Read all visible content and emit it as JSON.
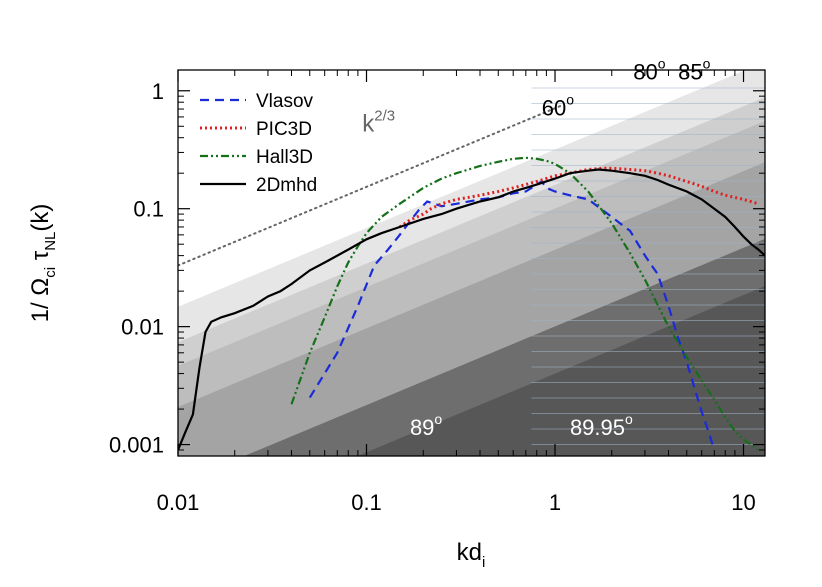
{
  "chart_data": {
    "type": "line",
    "xlabel": "kd",
    "xlabel_sub": "i",
    "ylabel_parts": {
      "prefix": "1/ Ω",
      "sub1": "ci",
      "tau": " τ",
      "sub2": "NL",
      "suffix": "(k)"
    },
    "xscale": "log",
    "yscale": "log",
    "xlim": [
      0.01,
      13
    ],
    "ylim": [
      0.0008,
      1.5
    ],
    "xticks": [
      {
        "value": 0.01,
        "label": "0.01"
      },
      {
        "value": 0.1,
        "label": "0.1"
      },
      {
        "value": 1,
        "label": "1"
      },
      {
        "value": 10,
        "label": "10"
      }
    ],
    "yticks": [
      {
        "value": 0.001,
        "label": "0.001"
      },
      {
        "value": 0.01,
        "label": "0.01"
      },
      {
        "value": 0.1,
        "label": "0.1"
      },
      {
        "value": 1,
        "label": "1"
      }
    ],
    "legend_position": "top-left",
    "series": [
      {
        "name": "Vlasov",
        "color": "#1a2bd9",
        "dash": "dashed",
        "x": [
          0.05,
          0.07,
          0.09,
          0.11,
          0.13,
          0.15,
          0.17,
          0.19,
          0.21,
          0.23,
          0.25,
          0.3,
          0.4,
          0.5,
          0.6,
          0.7,
          0.8,
          0.85,
          0.9,
          1.0,
          1.2,
          1.5,
          2.0,
          2.5,
          3.0,
          3.3,
          3.5,
          4.0,
          4.5,
          5.0,
          5.5,
          6.0,
          6.5,
          7.0
        ],
        "y": [
          0.0025,
          0.006,
          0.015,
          0.033,
          0.045,
          0.06,
          0.078,
          0.098,
          0.115,
          0.11,
          0.105,
          0.11,
          0.12,
          0.125,
          0.135,
          0.14,
          0.16,
          0.17,
          0.15,
          0.14,
          0.13,
          0.12,
          0.085,
          0.065,
          0.04,
          0.032,
          0.028,
          0.015,
          0.008,
          0.005,
          0.003,
          0.0019,
          0.0013,
          0.0009
        ]
      },
      {
        "name": "PIC3D",
        "color": "#e01f1f",
        "dash": "dotted",
        "x": [
          0.15,
          0.17,
          0.2,
          0.22,
          0.25,
          0.3,
          0.35,
          0.4,
          0.5,
          0.6,
          0.7,
          0.8,
          1.0,
          1.2,
          1.5,
          1.8,
          2.0,
          2.5,
          3.0,
          3.5,
          4.0,
          5.0,
          6.0,
          7.0,
          8.0,
          10.0,
          12.0
        ],
        "y": [
          0.07,
          0.08,
          0.09,
          0.1,
          0.11,
          0.12,
          0.125,
          0.13,
          0.14,
          0.15,
          0.16,
          0.17,
          0.19,
          0.2,
          0.215,
          0.22,
          0.22,
          0.215,
          0.21,
          0.2,
          0.19,
          0.17,
          0.155,
          0.14,
          0.13,
          0.12,
          0.11
        ]
      },
      {
        "name": "Hall3D",
        "color": "#16701a",
        "dash": "dash-dot-dot",
        "x": [
          0.04,
          0.05,
          0.06,
          0.07,
          0.08,
          0.09,
          0.1,
          0.12,
          0.15,
          0.2,
          0.25,
          0.3,
          0.4,
          0.5,
          0.6,
          0.7,
          0.8,
          0.9,
          1.0,
          1.2,
          1.5,
          2.0,
          2.5,
          3.0,
          4.0,
          5.0,
          6.0,
          7.0,
          8.0,
          9.0,
          10.0,
          11.0,
          12.0
        ],
        "y": [
          0.0022,
          0.006,
          0.012,
          0.022,
          0.035,
          0.048,
          0.062,
          0.085,
          0.11,
          0.15,
          0.18,
          0.2,
          0.23,
          0.25,
          0.265,
          0.27,
          0.265,
          0.255,
          0.24,
          0.2,
          0.14,
          0.075,
          0.042,
          0.025,
          0.01,
          0.0055,
          0.0035,
          0.0024,
          0.0017,
          0.0013,
          0.0011,
          0.001,
          0.0009
        ]
      },
      {
        "name": "2Dmhd",
        "color": "#000000",
        "dash": "solid",
        "x": [
          0.01,
          0.011,
          0.012,
          0.013,
          0.014,
          0.015,
          0.017,
          0.02,
          0.025,
          0.03,
          0.035,
          0.04,
          0.05,
          0.06,
          0.07,
          0.08,
          0.1,
          0.12,
          0.15,
          0.2,
          0.25,
          0.3,
          0.4,
          0.5,
          0.6,
          0.7,
          0.8,
          1.0,
          1.2,
          1.5,
          1.7,
          2.0,
          2.5,
          3.0,
          3.5,
          4.0,
          5.0,
          6.0,
          7.0,
          8.0,
          9.0,
          10.0,
          11.0,
          12.0,
          13.0
        ],
        "y": [
          0.0009,
          0.0013,
          0.0018,
          0.0045,
          0.009,
          0.011,
          0.012,
          0.013,
          0.015,
          0.018,
          0.02,
          0.023,
          0.03,
          0.035,
          0.04,
          0.045,
          0.055,
          0.062,
          0.07,
          0.082,
          0.09,
          0.1,
          0.115,
          0.125,
          0.14,
          0.15,
          0.16,
          0.18,
          0.2,
          0.21,
          0.215,
          0.21,
          0.2,
          0.19,
          0.175,
          0.16,
          0.14,
          0.12,
          0.1,
          0.085,
          0.07,
          0.058,
          0.05,
          0.045,
          0.04
        ]
      }
    ],
    "reference_line": {
      "label": "k",
      "label_sup": "2/3",
      "exponent": 0.6667,
      "x": [
        0.01,
        1.1
      ],
      "y0": 0.033,
      "color": "#666666"
    },
    "wedges": [
      {
        "angle_label": "60",
        "degree_sign": "o",
        "color": "#e6e6e6",
        "label_x": 0.85,
        "label_y": 0.62,
        "label_color": "#000000",
        "shift_from_left": 0.0
      },
      {
        "angle_label": "80",
        "degree_sign": "o",
        "color": "#cfcfcf",
        "label_x": 2.6,
        "label_y": 1.25,
        "label_color": "#000000",
        "shift_from_left": 0.6
      },
      {
        "angle_label": "85",
        "degree_sign": "o",
        "color": "#bdbdbd",
        "label_x": 4.5,
        "label_y": 1.25,
        "label_color": "#000000",
        "shift_from_left": 1.0
      },
      {
        "angle_label": "89",
        "degree_sign": "o",
        "color": "#a4a4a4",
        "label_x": 0.17,
        "label_y": 0.0012,
        "label_color": "#ffffff",
        "shift_from_left": 1.7
      },
      {
        "angle_label": "89.95",
        "degree_sign": "o",
        "color": "#6e6e6e",
        "label_x": 1.2,
        "label_y": 0.0012,
        "label_color": "#ffffff",
        "shift_from_left": 3.0
      }
    ],
    "final_wedge_color": "#575757",
    "hatch_color": "#9fb3c7"
  }
}
